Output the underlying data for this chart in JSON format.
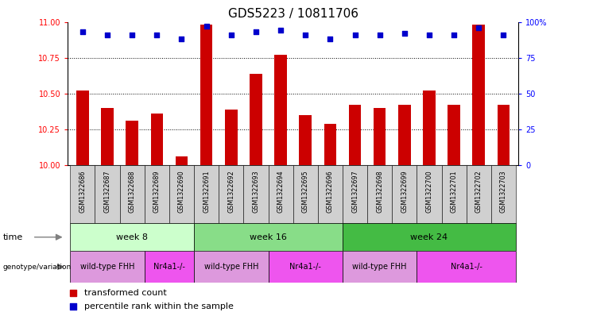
{
  "title": "GDS5223 / 10811706",
  "samples": [
    "GSM1322686",
    "GSM1322687",
    "GSM1322688",
    "GSM1322689",
    "GSM1322690",
    "GSM1322691",
    "GSM1322692",
    "GSM1322693",
    "GSM1322694",
    "GSM1322695",
    "GSM1322696",
    "GSM1322697",
    "GSM1322698",
    "GSM1322699",
    "GSM1322700",
    "GSM1322701",
    "GSM1322702",
    "GSM1322703"
  ],
  "transformed_count": [
    10.52,
    10.4,
    10.31,
    10.36,
    10.06,
    10.98,
    10.39,
    10.64,
    10.77,
    10.35,
    10.29,
    10.42,
    10.4,
    10.42,
    10.52,
    10.42,
    10.98,
    10.42
  ],
  "percentile_rank": [
    93,
    91,
    91,
    91,
    88,
    97,
    91,
    93,
    94,
    91,
    88,
    91,
    91,
    92,
    91,
    91,
    96,
    91
  ],
  "ylim_left": [
    10,
    11
  ],
  "ylim_right": [
    0,
    100
  ],
  "yticks_left": [
    10,
    10.25,
    10.5,
    10.75,
    11
  ],
  "yticks_right": [
    0,
    25,
    50,
    75,
    100
  ],
  "bar_color": "#CC0000",
  "dot_color": "#0000CC",
  "time_groups": [
    {
      "label": "week 8",
      "start": 0,
      "end": 5,
      "color": "#ccffcc"
    },
    {
      "label": "week 16",
      "start": 5,
      "end": 11,
      "color": "#88dd88"
    },
    {
      "label": "week 24",
      "start": 11,
      "end": 18,
      "color": "#44bb44"
    }
  ],
  "genotype_groups": [
    {
      "label": "wild-type FHH",
      "start": 0,
      "end": 3,
      "color": "#dd99dd"
    },
    {
      "label": "Nr4a1-/-",
      "start": 3,
      "end": 5,
      "color": "#ee55ee"
    },
    {
      "label": "wild-type FHH",
      "start": 5,
      "end": 8,
      "color": "#dd99dd"
    },
    {
      "label": "Nr4a1-/-",
      "start": 8,
      "end": 11,
      "color": "#ee55ee"
    },
    {
      "label": "wild-type FHH",
      "start": 11,
      "end": 14,
      "color": "#dd99dd"
    },
    {
      "label": "Nr4a1-/-",
      "start": 14,
      "end": 18,
      "color": "#ee55ee"
    }
  ],
  "legend_items": [
    {
      "label": "transformed count",
      "color": "#CC0000"
    },
    {
      "label": "percentile rank within the sample",
      "color": "#0000CC"
    }
  ],
  "sample_box_color": "#d0d0d0",
  "title_fontsize": 11,
  "axis_fontsize": 8,
  "label_fontsize": 8,
  "tick_fontsize": 7,
  "bar_width": 0.5
}
